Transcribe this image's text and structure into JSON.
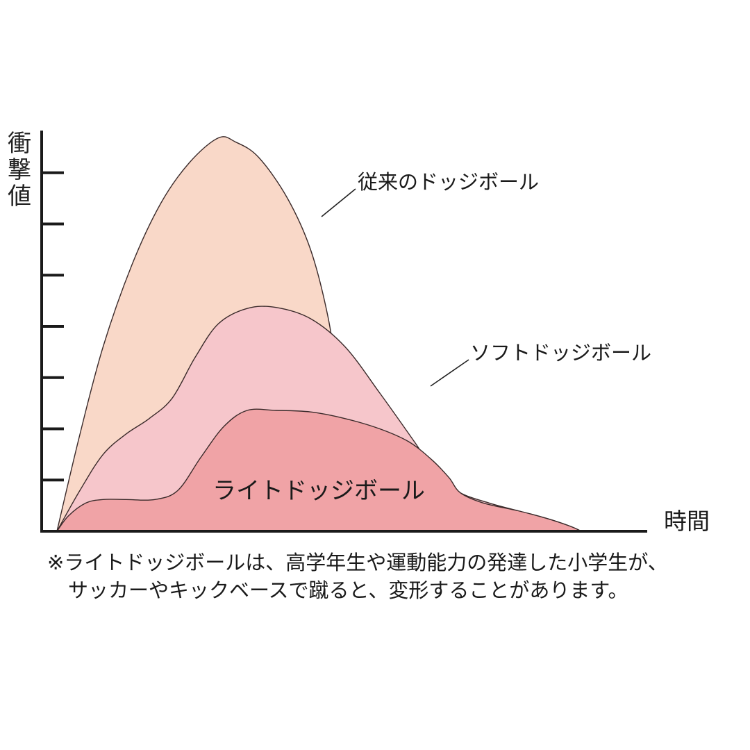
{
  "chart_data": {
    "type": "area",
    "title": "",
    "ylabel": "衝撃値",
    "xlabel": "時間",
    "xlim": [
      0,
      100
    ],
    "ylim": [
      0,
      8
    ],
    "y_ticks": [
      1,
      2,
      3,
      4,
      5,
      6,
      7
    ],
    "grid": false,
    "series": [
      {
        "name": "従来のドッジボール",
        "fill": "#f9d8c8",
        "points": [
          [
            0,
            0
          ],
          [
            4,
            1.9
          ],
          [
            8,
            3.6
          ],
          [
            13,
            5.2
          ],
          [
            18,
            6.4
          ],
          [
            23,
            7.2
          ],
          [
            28,
            7.68
          ],
          [
            31,
            7.6
          ],
          [
            35,
            7.3
          ],
          [
            40,
            6.5
          ],
          [
            44,
            5.5
          ],
          [
            47,
            4.2
          ],
          [
            49,
            2.8
          ],
          [
            51,
            1.6
          ],
          [
            55,
            1.25
          ],
          [
            60,
            0.9
          ],
          [
            65,
            0.45
          ],
          [
            70,
            0.1
          ],
          [
            71,
            0
          ]
        ]
      },
      {
        "name": "ソフトドッジボール",
        "fill": "#f6c6cb",
        "points": [
          [
            0,
            0
          ],
          [
            4,
            0.8
          ],
          [
            8,
            1.5
          ],
          [
            12,
            1.9
          ],
          [
            16,
            2.2
          ],
          [
            20,
            2.6
          ],
          [
            24,
            3.4
          ],
          [
            28,
            4.05
          ],
          [
            33,
            4.35
          ],
          [
            38,
            4.37
          ],
          [
            44,
            4.15
          ],
          [
            50,
            3.6
          ],
          [
            56,
            2.7
          ],
          [
            62,
            1.75
          ],
          [
            66,
            1.1
          ],
          [
            70,
            0.75
          ],
          [
            75,
            0.55
          ],
          [
            80,
            0.4
          ],
          [
            85,
            0.25
          ],
          [
            89,
            0.1
          ],
          [
            91,
            0
          ]
        ]
      },
      {
        "name": "ライトドッジボール",
        "fill": "#f0a3a6",
        "points": [
          [
            0,
            0
          ],
          [
            2,
            0.3
          ],
          [
            5,
            0.55
          ],
          [
            8,
            0.62
          ],
          [
            12,
            0.62
          ],
          [
            17,
            0.62
          ],
          [
            21,
            0.8
          ],
          [
            25,
            1.45
          ],
          [
            29,
            2.05
          ],
          [
            33,
            2.36
          ],
          [
            38,
            2.36
          ],
          [
            44,
            2.33
          ],
          [
            50,
            2.2
          ],
          [
            56,
            2.0
          ],
          [
            61,
            1.75
          ],
          [
            65,
            1.4
          ],
          [
            68,
            1.05
          ],
          [
            70,
            0.75
          ],
          [
            74,
            0.55
          ],
          [
            80,
            0.4
          ],
          [
            85,
            0.25
          ],
          [
            89,
            0.1
          ],
          [
            91,
            0
          ]
        ]
      }
    ],
    "annotations": [
      "従来のドッジボール",
      "ソフトドッジボール",
      "ライトドッジボール"
    ]
  },
  "footnote": {
    "line1": "※ライトドッジボールは、高学年生や運動能力の発達した小学生が、",
    "line2": "サッカーやキックベースで蹴ると、変形することがあります。"
  }
}
